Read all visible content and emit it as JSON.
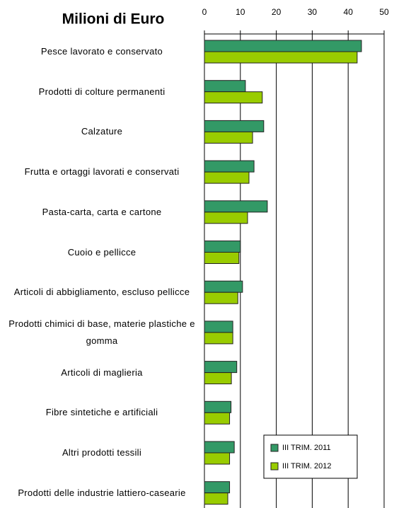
{
  "chart_data": {
    "type": "hbar",
    "title": "Milioni di Euro",
    "categories": [
      "Pesce lavorato e conservato",
      "Prodotti di colture permanenti",
      "Calzature",
      "Frutta e ortaggi lavorati e conservati",
      "Pasta-carta, carta e cartone",
      "Cuoio e pellicce",
      "Articoli di abbigliamento, escluso pellicce",
      "Prodotti chimici di base, materie plastiche e gomma",
      "Articoli di maglieria",
      "Fibre sintetiche e artificiali",
      "Altri prodotti tessili",
      "Prodotti delle industrie lattiero-casearie"
    ],
    "series": [
      {
        "name": "III TRIM. 2011",
        "color": "#339966",
        "values": [
          43.7,
          11.4,
          16.5,
          13.8,
          17.5,
          10.0,
          10.6,
          7.9,
          9.0,
          7.4,
          8.3,
          7.0
        ]
      },
      {
        "name": "III TRIM. 2012",
        "color": "#99cc00",
        "values": [
          42.5,
          16.1,
          13.4,
          12.4,
          12.0,
          9.6,
          9.3,
          7.9,
          7.5,
          7.0,
          7.0,
          6.5
        ]
      }
    ],
    "xlim": [
      0,
      50
    ],
    "xticks": [
      0,
      10,
      20,
      30,
      40,
      50
    ],
    "grid": true,
    "legend": "bottom-right"
  }
}
